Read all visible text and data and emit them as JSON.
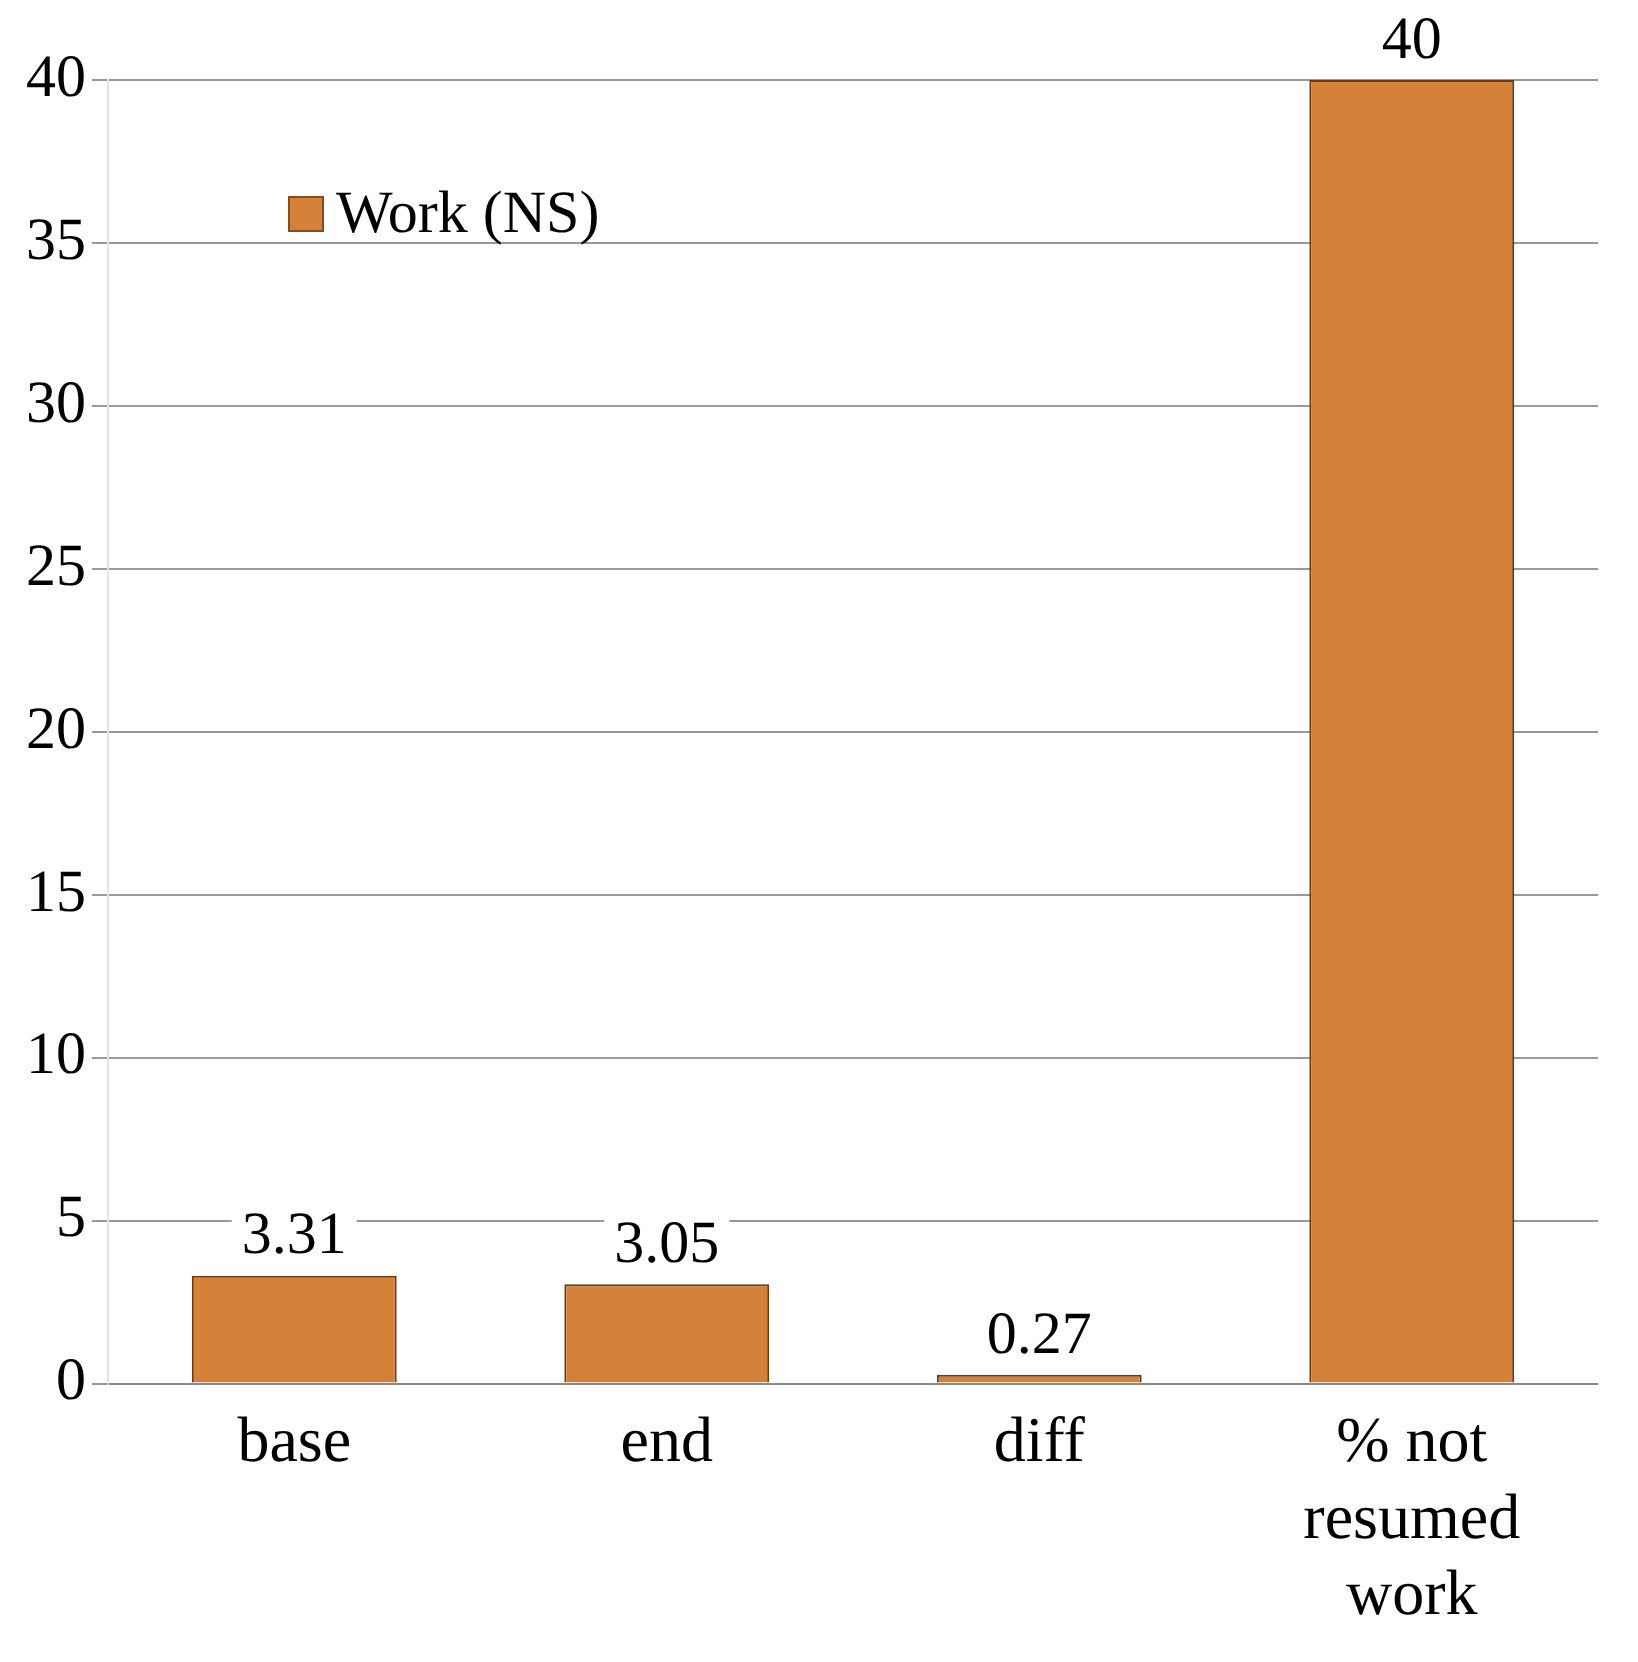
{
  "chart_data": {
    "type": "bar",
    "categories": [
      "base",
      "end",
      "diff",
      "% not resumed work"
    ],
    "series": [
      {
        "name": "Work (NS)",
        "color": "#d4813a",
        "values": [
          3.31,
          3.05,
          0.27,
          40
        ]
      }
    ],
    "ylim": [
      0,
      40
    ],
    "yticks": [
      0,
      5,
      10,
      15,
      20,
      25,
      30,
      35,
      40
    ],
    "grid": "y",
    "legend": "top left",
    "data_labels": true
  }
}
